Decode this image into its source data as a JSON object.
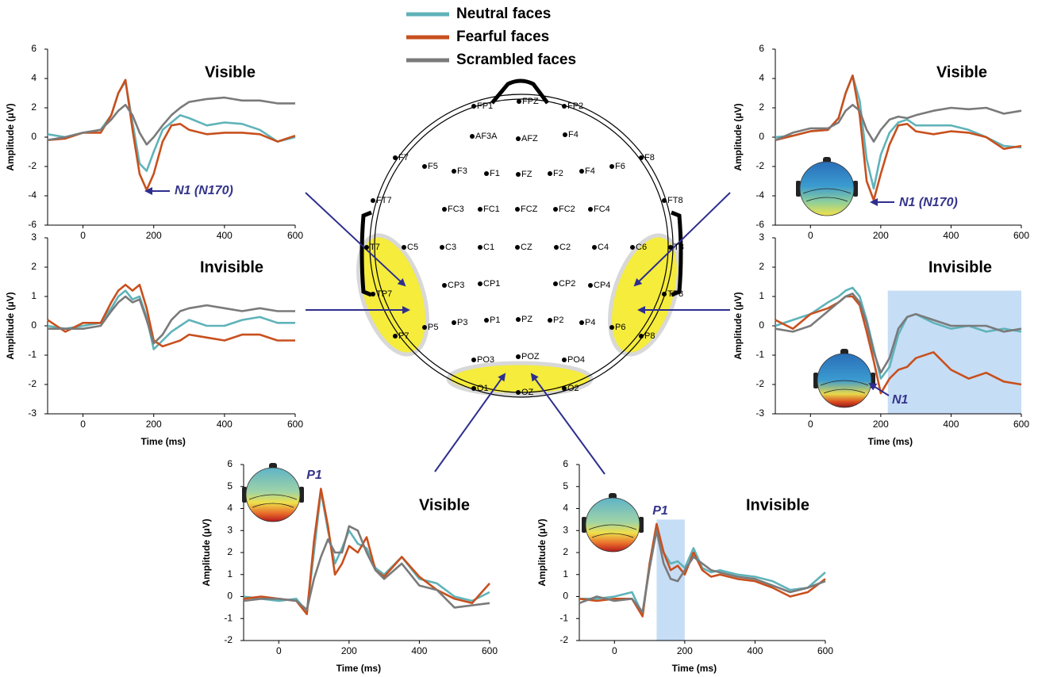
{
  "legend": [
    {
      "name": "Neutral faces",
      "color": "#5fb3b9"
    },
    {
      "name": "Fearful faces",
      "color": "#c8501e"
    },
    {
      "name": "Scrambled faces",
      "color": "#7a7a7a"
    }
  ],
  "electrodes": [
    "FP1",
    "FPZ",
    "FP2",
    "AF3A",
    "AFZ",
    "F4",
    "F7",
    "F5",
    "F3",
    "F1",
    "FZ",
    "F2",
    "F4",
    "F6",
    "F8",
    "FT7",
    "FC3",
    "FC1",
    "FCZ",
    "FC2",
    "FC4",
    "FT8",
    "T7",
    "C5",
    "C3",
    "C1",
    "CZ",
    "C2",
    "C4",
    "C6",
    "T8",
    "TP7",
    "CP3",
    "CP1",
    "CP2",
    "CP4",
    "TP8",
    "P7",
    "P5",
    "P3",
    "P1",
    "PZ",
    "P2",
    "P4",
    "P6",
    "P8",
    "PO3",
    "POZ",
    "PO4",
    "O1",
    "OZ",
    "O2"
  ],
  "chart_data": [
    {
      "type": "line",
      "title": "Visible",
      "ylabel": "Amplitude (μV)",
      "annotation": "N1 (N170)",
      "x": [
        -100,
        -50,
        0,
        50,
        80,
        100,
        120,
        140,
        160,
        180,
        200,
        225,
        250,
        275,
        300,
        350,
        400,
        450,
        500,
        550,
        600
      ],
      "xlim": [
        -100,
        600
      ],
      "xticks": [
        0,
        200,
        400,
        600
      ],
      "ylim": [
        -6,
        6
      ],
      "yticks": [
        -6,
        -4,
        -2,
        0,
        2,
        4,
        6
      ],
      "series": [
        {
          "values": [
            0.2,
            0,
            0.3,
            0.5,
            1.5,
            3,
            3.8,
            1,
            -1.8,
            -2.3,
            -1,
            0.5,
            1,
            1.5,
            1.3,
            0.8,
            1,
            0.9,
            0.5,
            -0.3,
            0
          ]
        },
        {
          "values": [
            -0.2,
            -0.1,
            0.3,
            0.3,
            1.5,
            3,
            3.9,
            0.5,
            -2.5,
            -3.6,
            -2.5,
            -0.3,
            0.8,
            0.9,
            0.5,
            0.2,
            0.3,
            0.3,
            0.2,
            -0.3,
            0.1
          ]
        },
        {
          "values": [
            -0.2,
            0,
            0.3,
            0.5,
            1.2,
            1.8,
            2.2,
            1.5,
            0.3,
            -0.5,
            0,
            0.8,
            1.5,
            2,
            2.4,
            2.6,
            2.7,
            2.5,
            2.5,
            2.3,
            2.3
          ]
        }
      ]
    },
    {
      "type": "line",
      "title": "Invisible",
      "ylabel": "Amplitude (μV)",
      "xlabel": "Time (ms)",
      "x": [
        -100,
        -50,
        0,
        50,
        80,
        100,
        120,
        140,
        160,
        180,
        200,
        225,
        250,
        275,
        300,
        350,
        400,
        450,
        500,
        550,
        600
      ],
      "xlim": [
        -100,
        600
      ],
      "xticks": [
        0,
        200,
        400,
        600
      ],
      "ylim": [
        -3,
        3
      ],
      "yticks": [
        -3,
        -2,
        -1,
        0,
        1,
        2,
        3
      ],
      "series": [
        {
          "values": [
            0,
            -0.1,
            0,
            0.1,
            0.6,
            1,
            1.2,
            0.9,
            1,
            0.3,
            -0.8,
            -0.5,
            -0.2,
            0,
            0.2,
            0,
            0,
            0.2,
            0.3,
            0.1,
            0.1
          ]
        },
        {
          "values": [
            0.2,
            -0.2,
            0.1,
            0.1,
            0.8,
            1.2,
            1.4,
            1.2,
            1.4,
            0.6,
            -0.5,
            -0.7,
            -0.6,
            -0.5,
            -0.3,
            -0.4,
            -0.5,
            -0.3,
            -0.3,
            -0.5,
            -0.5
          ]
        },
        {
          "values": [
            -0.1,
            -0.1,
            -0.1,
            0,
            0.5,
            0.8,
            1,
            0.8,
            0.9,
            0.2,
            -0.6,
            -0.3,
            0.2,
            0.5,
            0.6,
            0.7,
            0.6,
            0.5,
            0.6,
            0.5,
            0.5
          ]
        }
      ]
    },
    {
      "type": "line",
      "title": "Visible",
      "ylabel": "Amplitude (μV)",
      "annotation": "N1 (N170)",
      "x": [
        -100,
        -50,
        0,
        50,
        80,
        100,
        120,
        140,
        160,
        180,
        200,
        225,
        250,
        275,
        300,
        350,
        400,
        450,
        500,
        550,
        600
      ],
      "xlim": [
        -100,
        600
      ],
      "xticks": [
        0,
        200,
        400,
        600
      ],
      "ylim": [
        -6,
        6
      ],
      "yticks": [
        -6,
        -4,
        -2,
        0,
        2,
        4,
        6
      ],
      "series": [
        {
          "values": [
            0,
            0.1,
            0.4,
            0.5,
            1.3,
            3,
            4.2,
            2.5,
            -1.5,
            -3.5,
            -1.2,
            0.3,
            1,
            1.2,
            0.8,
            0.8,
            0.8,
            0.5,
            0,
            -0.6,
            -0.7
          ]
        },
        {
          "values": [
            -0.2,
            0.1,
            0.4,
            0.5,
            1.3,
            3,
            4.2,
            1.5,
            -3,
            -4.3,
            -2.5,
            -0.5,
            0.8,
            0.9,
            0.4,
            0.2,
            0.4,
            0.3,
            0,
            -0.8,
            -0.6
          ]
        },
        {
          "values": [
            -0.2,
            0.3,
            0.6,
            0.6,
            1,
            1.8,
            2.2,
            1.8,
            0.5,
            -0.3,
            0.5,
            1.2,
            1.4,
            1.3,
            1.5,
            1.8,
            2,
            1.9,
            2,
            1.6,
            1.8
          ]
        }
      ]
    },
    {
      "type": "line",
      "title": "Invisible",
      "ylabel": "Amplitude (μV)",
      "xlabel": "Time (ms)",
      "annotation": "N1",
      "x": [
        -100,
        -50,
        0,
        50,
        80,
        100,
        120,
        140,
        160,
        180,
        200,
        225,
        250,
        275,
        300,
        350,
        400,
        450,
        500,
        550,
        600
      ],
      "xlim": [
        -100,
        600
      ],
      "xticks": [
        0,
        200,
        400,
        600
      ],
      "ylim": [
        -3,
        3
      ],
      "yticks": [
        -3,
        -2,
        -1,
        0,
        1,
        2,
        3
      ],
      "highlight": {
        "x": [
          220,
          600
        ],
        "y": [
          -3,
          1.2
        ]
      },
      "series": [
        {
          "values": [
            0,
            0.2,
            0.4,
            0.8,
            1,
            1.2,
            1.3,
            1,
            0.2,
            -0.8,
            -1.8,
            -1.4,
            -0.3,
            0.3,
            0.4,
            0.1,
            -0.1,
            0,
            -0.2,
            -0.1,
            -0.2
          ]
        },
        {
          "values": [
            0.2,
            -0.1,
            0.4,
            0.6,
            0.8,
            1,
            1,
            0.7,
            -0.2,
            -1.2,
            -2.3,
            -1.8,
            -1.5,
            -1.4,
            -1.1,
            -0.9,
            -1.5,
            -1.8,
            -1.6,
            -1.9,
            -2
          ]
        },
        {
          "values": [
            -0.1,
            -0.2,
            0,
            0.5,
            0.8,
            1,
            1.1,
            0.8,
            0.1,
            -0.9,
            -1.6,
            -1.1,
            -0.1,
            0.3,
            0.4,
            0.2,
            0,
            0,
            0,
            -0.2,
            -0.1
          ]
        }
      ]
    },
    {
      "type": "line",
      "title": "Visible",
      "ylabel": "Amplitude (μV)",
      "xlabel": "Time (ms)",
      "annotation": "P1",
      "x": [
        -100,
        -50,
        0,
        50,
        80,
        100,
        120,
        140,
        160,
        180,
        200,
        225,
        250,
        275,
        300,
        350,
        400,
        450,
        500,
        550,
        600
      ],
      "xlim": [
        -100,
        600
      ],
      "xticks": [
        0,
        200,
        400,
        600
      ],
      "ylim": [
        -2,
        6
      ],
      "yticks": [
        -2,
        -1,
        0,
        1,
        2,
        3,
        4,
        5,
        6
      ],
      "series": [
        {
          "values": [
            0,
            -0.1,
            -0.2,
            -0.1,
            -0.7,
            2,
            4.8,
            3,
            1.5,
            2.2,
            3,
            2.4,
            2.2,
            1.3,
            1,
            1.8,
            0.8,
            0.6,
            0,
            -0.2,
            0.2
          ]
        },
        {
          "values": [
            -0.1,
            0,
            -0.1,
            -0.2,
            -0.8,
            2.5,
            4.9,
            3.2,
            1,
            1.5,
            2.3,
            2,
            2.7,
            1.2,
            0.9,
            1.8,
            0.9,
            0.3,
            -0.1,
            -0.3,
            0.6
          ]
        },
        {
          "values": [
            -0.2,
            -0.1,
            -0.1,
            -0.2,
            -0.6,
            0.8,
            1.8,
            2.6,
            2,
            2,
            3.2,
            3,
            2,
            1.2,
            0.8,
            1.5,
            0.5,
            0.3,
            -0.5,
            -0.4,
            -0.3
          ]
        }
      ]
    },
    {
      "type": "line",
      "title": "Invisible",
      "ylabel": "Amplitude (μV)",
      "xlabel": "Time (ms)",
      "annotation": "P1",
      "x": [
        -100,
        -50,
        0,
        50,
        80,
        100,
        120,
        140,
        160,
        180,
        200,
        225,
        250,
        275,
        300,
        350,
        400,
        450,
        500,
        550,
        600
      ],
      "xlim": [
        -100,
        600
      ],
      "xticks": [
        0,
        200,
        400,
        600
      ],
      "ylim": [
        -2,
        6
      ],
      "yticks": [
        -2,
        -1,
        0,
        1,
        2,
        3,
        4,
        5,
        6
      ],
      "highlight": {
        "x": [
          120,
          200
        ],
        "y": [
          -2,
          3.5
        ]
      },
      "series": [
        {
          "values": [
            -0.1,
            -0.1,
            0,
            0.2,
            -0.8,
            1.5,
            3.2,
            2,
            1.5,
            1.6,
            1.3,
            2.2,
            1.3,
            1.1,
            1.2,
            1,
            0.9,
            0.7,
            0.3,
            0.4,
            1.1
          ]
        },
        {
          "values": [
            -0.1,
            -0.2,
            -0.1,
            -0.1,
            -0.9,
            1.5,
            3.3,
            2,
            1.2,
            1.4,
            1,
            2,
            1.2,
            0.9,
            1,
            0.8,
            0.7,
            0.4,
            0,
            0.2,
            0.8
          ]
        },
        {
          "values": [
            -0.3,
            0,
            -0.2,
            -0.1,
            -0.7,
            1.3,
            3,
            1.5,
            0.8,
            0.7,
            1.2,
            1.8,
            1.5,
            1.2,
            1.1,
            0.9,
            0.8,
            0.5,
            0.2,
            0.4,
            0.7
          ]
        }
      ]
    }
  ]
}
